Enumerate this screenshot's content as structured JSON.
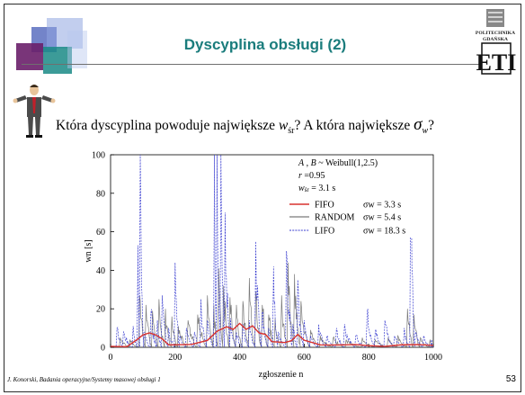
{
  "slide": {
    "title": "Dyscyplina obsługi (2)",
    "question_part1": "Która dyscyplina powoduje największe ",
    "question_w": "w",
    "question_w_sub": "śr",
    "question_part2": "? A która największe ",
    "question_sigma": "σ",
    "question_sigma_sub": "w",
    "question_part3": "?",
    "footer": "J. Konorski, Badania operacyjne/Systemy masowej obsługi 1",
    "page_number": "53",
    "logo_text_1": "POLITECHNIKA",
    "logo_text_2": "GDAŃSKA",
    "logo_text_3": "ETI"
  },
  "colors": {
    "title": "#1a7c7c",
    "fifo": "#d8322e",
    "random": "#7a7a7a",
    "lifo": "#3b3fd0"
  },
  "chart_data": {
    "type": "line",
    "xlabel": "zgłoszenie n",
    "ylabel": "wn [s]",
    "xlim": [
      0,
      1000
    ],
    "ylim": [
      0,
      100
    ],
    "x_ticks": [
      "0",
      "200",
      "400",
      "600",
      "800",
      "1000"
    ],
    "y_ticks": [
      "0",
      "20",
      "40",
      "60",
      "80",
      "100"
    ],
    "annotations": [
      "A , B ~  Weibull(1,2.5)",
      "r =0.95",
      "w śr = 3.1 s"
    ],
    "legend_position": "top-right",
    "series": [
      {
        "name": "FIFO",
        "stat": "σw =   3.3 s",
        "sigma": 3.3,
        "points": [
          [
            0,
            0.5
          ],
          [
            50,
            1
          ],
          [
            80,
            3
          ],
          [
            100,
            7
          ],
          [
            120,
            8
          ],
          [
            140,
            6
          ],
          [
            160,
            5
          ],
          [
            180,
            2
          ],
          [
            200,
            1
          ],
          [
            250,
            2
          ],
          [
            300,
            4
          ],
          [
            330,
            9
          ],
          [
            360,
            11
          ],
          [
            380,
            9
          ],
          [
            400,
            12
          ],
          [
            420,
            10
          ],
          [
            440,
            11
          ],
          [
            460,
            8
          ],
          [
            480,
            6
          ],
          [
            500,
            3
          ],
          [
            540,
            2
          ],
          [
            560,
            4
          ],
          [
            580,
            6
          ],
          [
            600,
            3
          ],
          [
            650,
            1
          ],
          [
            700,
            1
          ],
          [
            760,
            1.5
          ],
          [
            800,
            1
          ],
          [
            850,
            1
          ],
          [
            900,
            1.5
          ],
          [
            950,
            2
          ],
          [
            1000,
            1
          ]
        ]
      },
      {
        "name": "RANDOM",
        "stat": "σw =   5.4 s",
        "sigma": 5.4,
        "peaks": [
          [
            30,
            5
          ],
          [
            60,
            4
          ],
          [
            90,
            27
          ],
          [
            110,
            22
          ],
          [
            130,
            19
          ],
          [
            150,
            25
          ],
          [
            170,
            20
          ],
          [
            190,
            16
          ],
          [
            210,
            11
          ],
          [
            240,
            14
          ],
          [
            270,
            17
          ],
          [
            300,
            27
          ],
          [
            320,
            22
          ],
          [
            335,
            41
          ],
          [
            350,
            32
          ],
          [
            370,
            26
          ],
          [
            390,
            22
          ],
          [
            410,
            24
          ],
          [
            430,
            36
          ],
          [
            450,
            29
          ],
          [
            470,
            22
          ],
          [
            490,
            17
          ],
          [
            510,
            15
          ],
          [
            530,
            27
          ],
          [
            550,
            44
          ],
          [
            570,
            38
          ],
          [
            590,
            24
          ],
          [
            620,
            9
          ],
          [
            650,
            6
          ],
          [
            690,
            5
          ],
          [
            730,
            4
          ],
          [
            780,
            5
          ],
          [
            820,
            4
          ],
          [
            860,
            5
          ],
          [
            890,
            6
          ],
          [
            920,
            20
          ],
          [
            940,
            17
          ],
          [
            960,
            5
          ],
          [
            990,
            4
          ]
        ]
      },
      {
        "name": "LIFO",
        "stat": "σw = 18.3 s",
        "sigma": 18.3,
        "peaks": [
          [
            20,
            10
          ],
          [
            40,
            8
          ],
          [
            70,
            11
          ],
          [
            85,
            53
          ],
          [
            92,
            100
          ],
          [
            105,
            8
          ],
          [
            125,
            18
          ],
          [
            145,
            14
          ],
          [
            160,
            27
          ],
          [
            180,
            10
          ],
          [
            200,
            44
          ],
          [
            215,
            6
          ],
          [
            235,
            10
          ],
          [
            260,
            8
          ],
          [
            280,
            25
          ],
          [
            300,
            14
          ],
          [
            322,
            100
          ],
          [
            330,
            100
          ],
          [
            342,
            100
          ],
          [
            355,
            70
          ],
          [
            372,
            15
          ],
          [
            390,
            8
          ],
          [
            410,
            12
          ],
          [
            430,
            14
          ],
          [
            450,
            55
          ],
          [
            470,
            18
          ],
          [
            490,
            10
          ],
          [
            505,
            42
          ],
          [
            520,
            8
          ],
          [
            545,
            50
          ],
          [
            565,
            12
          ],
          [
            580,
            35
          ],
          [
            600,
            14
          ],
          [
            620,
            6
          ],
          [
            645,
            12
          ],
          [
            670,
            6
          ],
          [
            700,
            10
          ],
          [
            725,
            12
          ],
          [
            760,
            6
          ],
          [
            795,
            18
          ],
          [
            820,
            8
          ],
          [
            850,
            14
          ],
          [
            880,
            6
          ],
          [
            910,
            10
          ],
          [
            930,
            90
          ],
          [
            945,
            8
          ],
          [
            970,
            6
          ],
          [
            995,
            4
          ]
        ]
      }
    ]
  }
}
